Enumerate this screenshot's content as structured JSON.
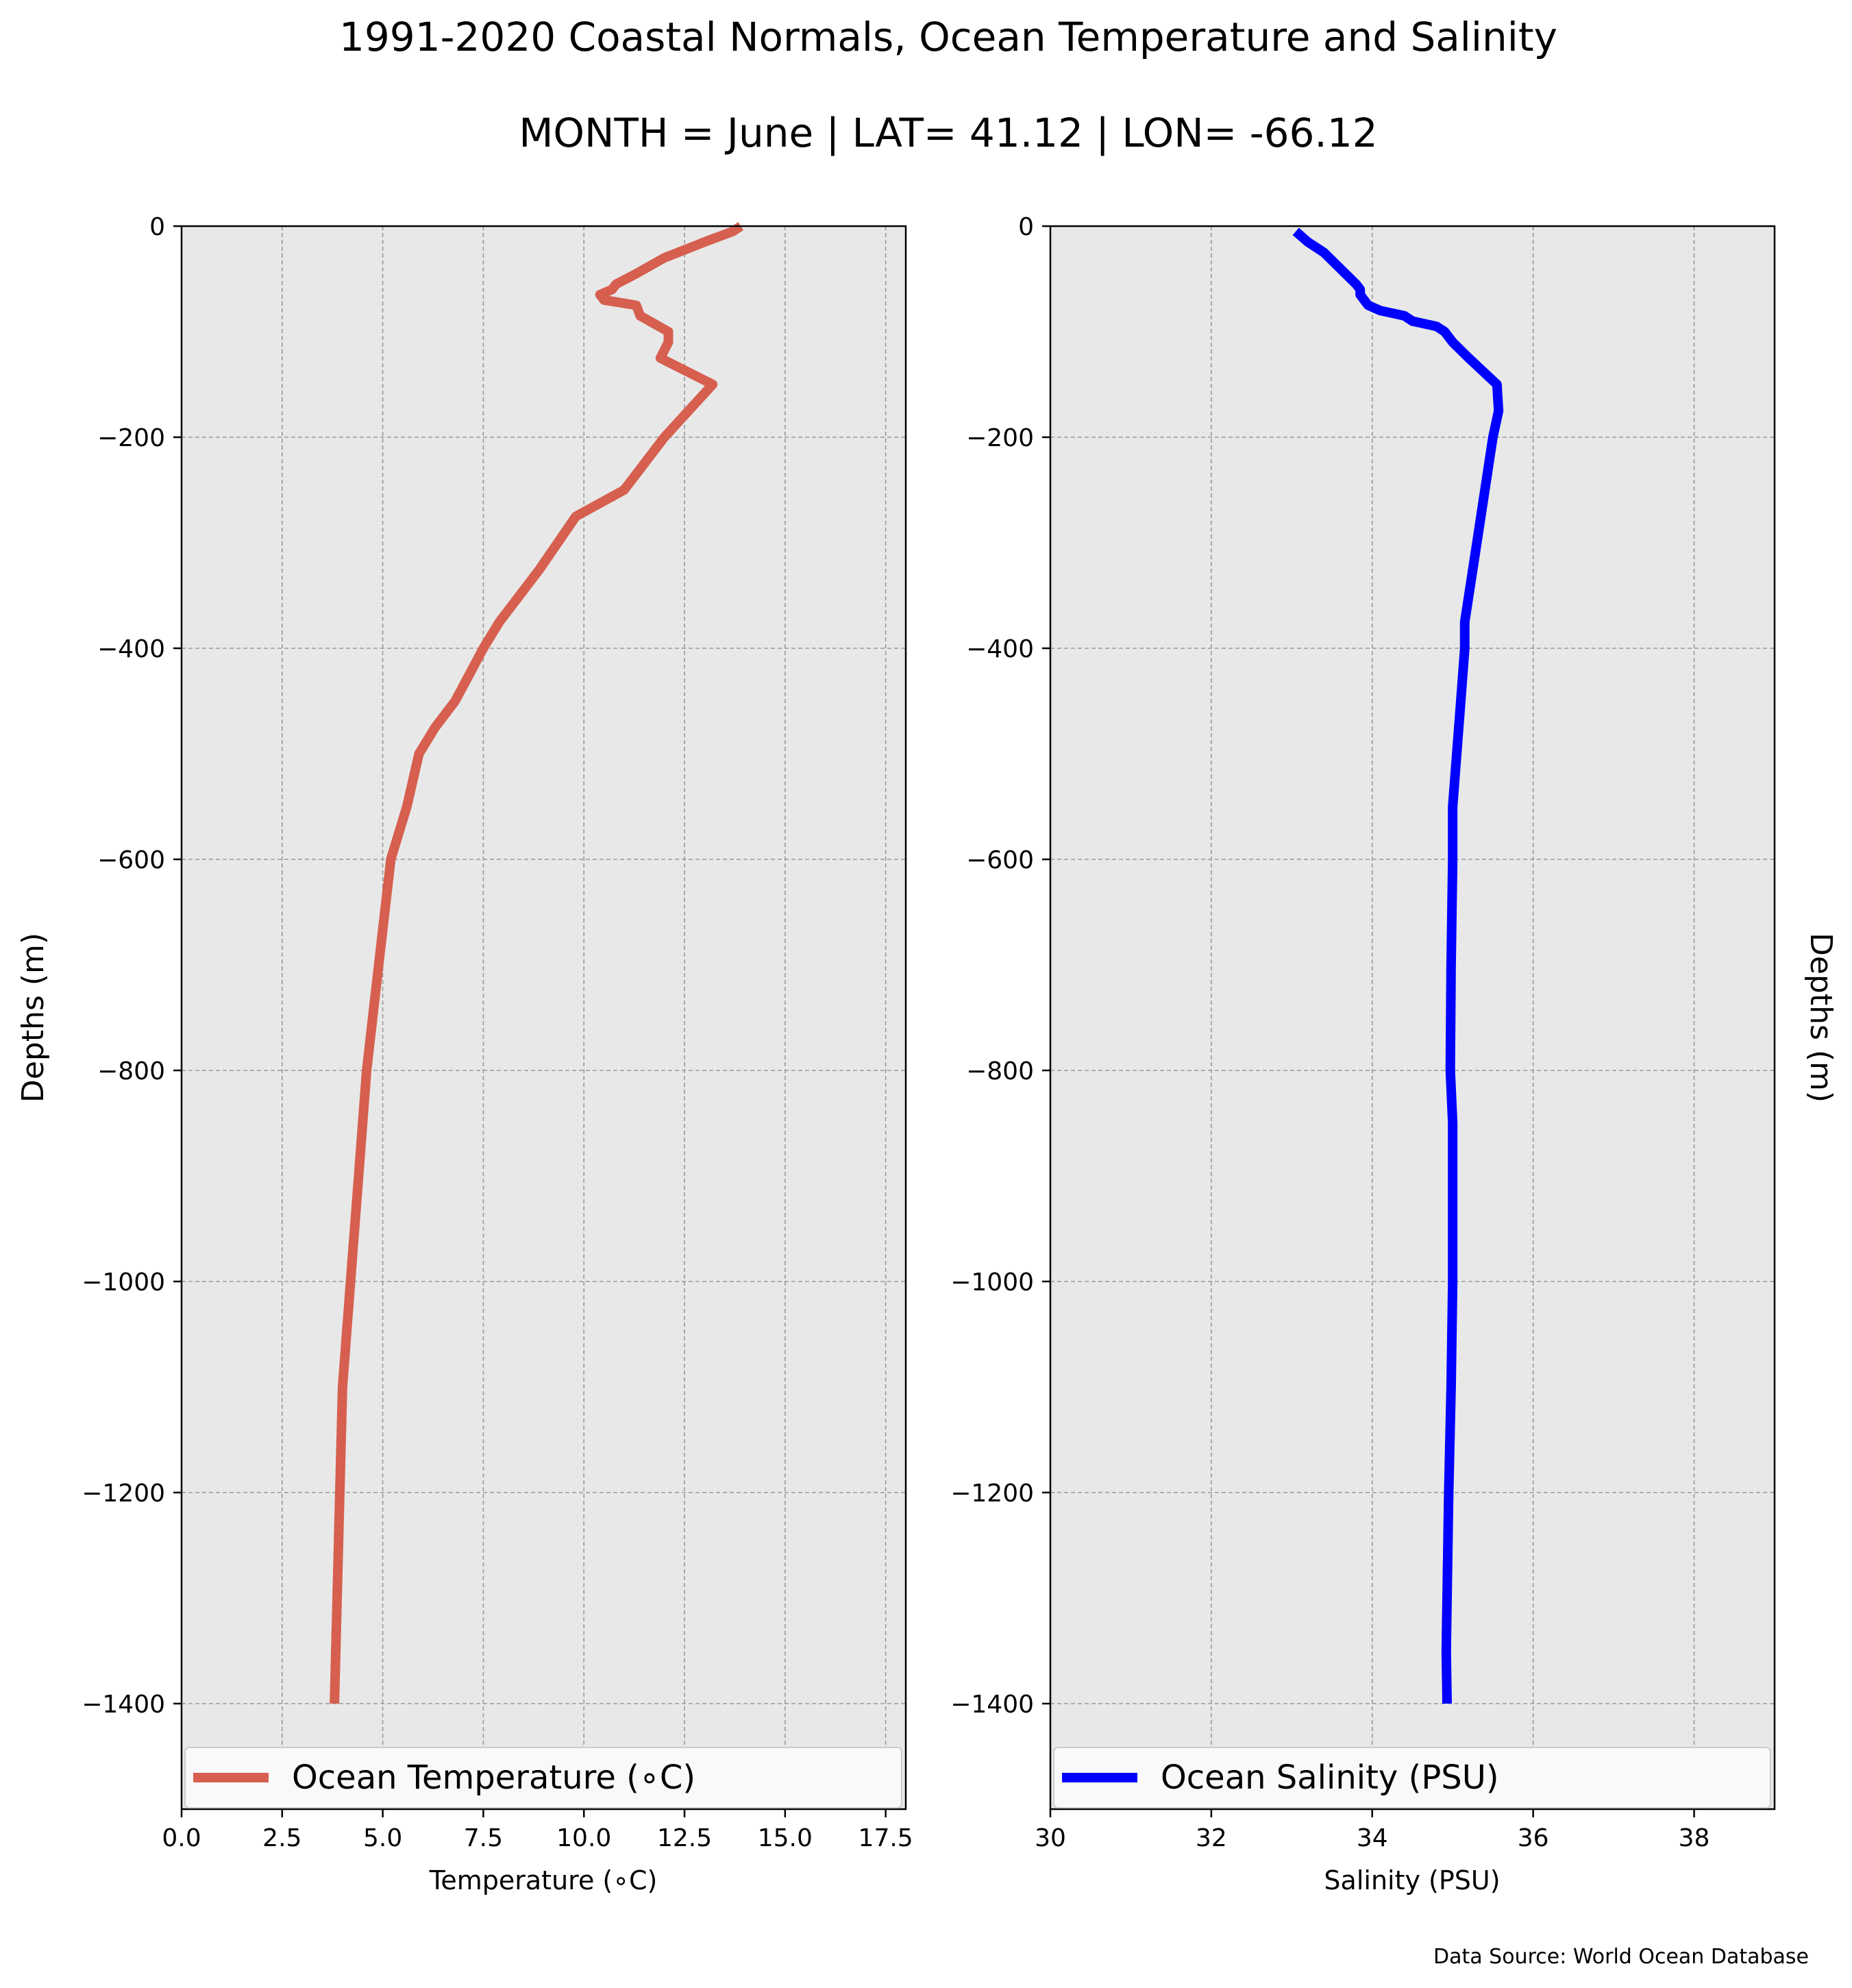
{
  "title": "1991-2020 Coastal Normals, Ocean Temperature and Salinity",
  "subtitle": "MONTH = June | LAT= 41.12 | LON= -66.12",
  "source_note": "Data Source: World Ocean Database",
  "colors": {
    "temperature": "#d65f4f",
    "salinity": "#0000ff",
    "panel_background": "#e8e8e8",
    "grid": "#999999"
  },
  "chart_data": [
    {
      "type": "line",
      "xlabel": "Temperature (∘C)",
      "ylabel": "Depths (m)",
      "xlim": [
        0,
        18
      ],
      "ylim": [
        -1500,
        0
      ],
      "xticks": [
        "0.0",
        "2.5",
        "5.0",
        "7.5",
        "10.0",
        "12.5",
        "15.0",
        "17.5"
      ],
      "yticks": [
        "0",
        "−200",
        "−400",
        "−600",
        "−800",
        "−1000",
        "−1200",
        "−1400"
      ],
      "grid": true,
      "legend": "bottom",
      "series": [
        {
          "name": "Ocean Temperature (∘C)",
          "x": [
            13.9,
            13.7,
            13.0,
            12.0,
            11.3,
            10.8,
            10.7,
            10.4,
            10.5,
            11.3,
            11.4,
            12.1,
            12.1,
            11.9,
            13.2,
            12.0,
            11.0,
            9.8,
            8.9,
            8.4,
            7.9,
            7.5,
            6.8,
            6.3,
            5.9,
            5.6,
            5.2,
            4.9,
            4.6,
            4.4,
            4.2,
            4.0,
            3.9,
            3.8
          ],
          "y": [
            0,
            -5,
            -15,
            -30,
            -45,
            -55,
            -60,
            -65,
            -70,
            -75,
            -85,
            -100,
            -110,
            -125,
            -150,
            -200,
            -250,
            -275,
            -325,
            -350,
            -375,
            -400,
            -450,
            -475,
            -500,
            -550,
            -600,
            -700,
            -800,
            -900,
            -1000,
            -1100,
            -1250,
            -1400
          ]
        }
      ]
    },
    {
      "type": "line",
      "xlabel": "Salinity (PSU)",
      "ylabel": "Depths (m)",
      "xlim": [
        30,
        39
      ],
      "ylim": [
        -1500,
        0
      ],
      "xticks": [
        "30",
        "32",
        "34",
        "36",
        "38"
      ],
      "yticks": [
        "0",
        "−200",
        "−400",
        "−600",
        "−800",
        "−1000",
        "−1200",
        "−1400"
      ],
      "grid": true,
      "legend": "bottom",
      "series": [
        {
          "name": "Ocean Salinity (PSU)",
          "x": [
            33.05,
            33.2,
            33.4,
            33.6,
            33.8,
            33.85,
            33.85,
            33.9,
            33.95,
            34.1,
            34.4,
            34.5,
            34.8,
            34.9,
            35.0,
            35.2,
            35.55,
            35.57,
            35.5,
            35.4,
            35.3,
            35.2,
            35.15,
            35.15,
            35.1,
            35.05,
            35.0,
            35.0,
            34.98,
            34.97,
            35.0,
            35.0,
            35.0,
            34.98,
            34.95,
            34.93,
            34.92,
            34.93
          ],
          "y": [
            -5,
            -15,
            -25,
            -40,
            -55,
            -60,
            -65,
            -70,
            -75,
            -80,
            -85,
            -90,
            -95,
            -100,
            -110,
            -125,
            -150,
            -175,
            -200,
            -250,
            -300,
            -350,
            -375,
            -400,
            -450,
            -500,
            -550,
            -600,
            -700,
            -800,
            -850,
            -900,
            -1000,
            -1100,
            -1200,
            -1300,
            -1350,
            -1400
          ]
        }
      ]
    }
  ]
}
